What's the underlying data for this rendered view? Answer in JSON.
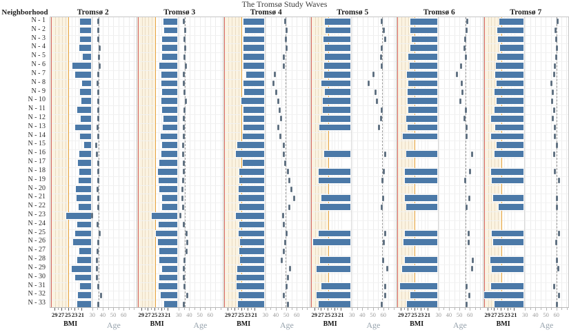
{
  "title": "The Tromsø Study Waves",
  "neighborhood_header": "Neighborhood",
  "axes": {
    "bmi_label": "BMI",
    "age_label": "Age",
    "bmi_domain": [
      30.5,
      18
    ],
    "bmi_ticks": [
      29,
      27,
      25,
      23,
      21
    ],
    "bmi_minor_ticks": [
      29,
      28,
      27,
      26,
      25,
      24,
      23,
      22,
      21
    ],
    "bmi_reference_line": 25,
    "age_domain": [
      29,
      72
    ],
    "age_ticks": [
      30,
      40,
      50,
      60
    ],
    "age_minor_step": 5,
    "bmi_zone_fraction": 0.48
  },
  "colors": {
    "bar": "#4b79a8",
    "bar_border": "#fdfdfd",
    "cream_background": "#fbf3e1",
    "orange_reference": "#e6a23c",
    "red_edge": "#d1605e",
    "age_marker": "#56687a",
    "mean_age_dash": "#979797",
    "grid_cream": "#eadcc4",
    "grid_white": "#efefef",
    "grid_age": "#ececec"
  },
  "chart_data": {
    "type": "bar",
    "title": "The Tromsø Study Waves",
    "xlabel_left": "BMI",
    "xlabel_right": "Age",
    "legend_position": "none",
    "grid": true,
    "categories": [
      "N - 1",
      "N - 2",
      "N - 3",
      "N - 4",
      "N - 5",
      "N - 6",
      "N - 7",
      "N - 8",
      "N - 9",
      "N - 10",
      "N - 11",
      "N - 12",
      "N - 13",
      "N - 14",
      "N - 15",
      "N - 16",
      "N - 17",
      "N - 18",
      "N - 19",
      "N - 20",
      "N - 21",
      "N - 22",
      "N - 23",
      "N - 24",
      "N - 25",
      "N - 26",
      "N - 27",
      "N - 28",
      "N - 29",
      "N - 30",
      "N - 31",
      "N - 32",
      "N - 33"
    ],
    "panels": [
      {
        "title": "Tromsø 2",
        "mean_age_line": 35.5,
        "bmi": [
          21.8,
          21.8,
          21.8,
          22.0,
          20.9,
          24.0,
          23.1,
          21.1,
          21.8,
          21.3,
          22.5,
          21.5,
          23.1,
          21.8,
          20.5,
          22.0,
          22.4,
          22.0,
          22.1,
          23.0,
          22.7,
          22.2,
          25.8,
          22.5,
          23.1,
          23.9,
          22.0,
          22.5,
          24.2,
          23.1,
          21.8,
          22.4,
          22.5
        ],
        "age": [
          35.2,
          35.8,
          35.5,
          36.5,
          36.2,
          36.5,
          35.8,
          34.5,
          35.2,
          35.5,
          35.2,
          35.5,
          34.9,
          35.8,
          33.6,
          34.2,
          35.5,
          35.2,
          35.5,
          34.9,
          35.5,
          35.2,
          29.7,
          34.5,
          36.5,
          35.8,
          34.9,
          34.2,
          33.9,
          34.2,
          35.5,
          37.8,
          35.2
        ]
      },
      {
        "title": "Tromsø 3",
        "mean_age_line": 35.2,
        "bmi": [
          22.7,
          22.4,
          23.0,
          23.1,
          23.1,
          24.0,
          23.2,
          23.2,
          23.1,
          23.2,
          23.0,
          22.7,
          22.9,
          23.5,
          23.1,
          23.3,
          24.0,
          24.4,
          24.2,
          23.9,
          23.1,
          23.1,
          26.3,
          24.2,
          24.9,
          24.4,
          23.9,
          23.9,
          23.1,
          24.0,
          24.2,
          23.5,
          22.5
        ],
        "age": [
          34.7,
          36.0,
          35.3,
          35.5,
          35.3,
          36.4,
          34.2,
          34.7,
          35.3,
          36.4,
          34.9,
          34.2,
          34.7,
          34.2,
          33.8,
          33.8,
          34.7,
          34.2,
          33.8,
          33.1,
          33.1,
          33.8,
          31.0,
          34.7,
          36.8,
          37.5,
          36.8,
          35.3,
          34.7,
          34.7,
          35.3,
          38.1,
          34.2
        ]
      },
      {
        "title": "Tromsø 4",
        "mean_age_line": 49.0,
        "bmi": [
          24.7,
          24.2,
          24.7,
          24.7,
          24.7,
          24.7,
          23.9,
          24.7,
          24.4,
          25.2,
          24.7,
          24.7,
          24.7,
          24.9,
          26.5,
          27.0,
          24.9,
          25.8,
          25.9,
          26.1,
          26.1,
          25.9,
          27.0,
          25.8,
          26.1,
          25.6,
          25.8,
          25.6,
          26.6,
          26.7,
          26.7,
          26.1,
          26.3
        ],
        "age": [
          49.0,
          50.0,
          49.4,
          49.8,
          47.2,
          47.7,
          39.0,
          37.5,
          40.3,
          41.8,
          43.3,
          45.1,
          41.8,
          44.0,
          47.7,
          47.2,
          49.0,
          51.6,
          52.6,
          54.9,
          57.7,
          52.6,
          46.8,
          47.2,
          49.8,
          49.0,
          47.7,
          45.5,
          53.3,
          51.6,
          49.8,
          47.7,
          51.6
        ]
      },
      {
        "title": "Tromsø 5",
        "mean_age_line": 58.5,
        "bmi": [
          26.3,
          26.1,
          26.6,
          26.3,
          26.3,
          26.5,
          26.5,
          27.2,
          26.3,
          26.8,
          26.8,
          27.4,
          27.8,
          null,
          null,
          26.5,
          null,
          28.0,
          28.0,
          null,
          27.2,
          27.6,
          null,
          null,
          28.1,
          29.7,
          null,
          27.6,
          28.7,
          null,
          27.3,
          28.8,
          28.1
        ],
        "age": [
          58.5,
          60.3,
          61.4,
          58.5,
          57.7,
          58.1,
          50.5,
          45.5,
          52.7,
          53.8,
          58.5,
          57.7,
          55.5,
          null,
          null,
          61.4,
          null,
          60.3,
          59.2,
          null,
          59.8,
          58.5,
          null,
          null,
          62.0,
          60.7,
          null,
          59.8,
          63.5,
          null,
          62.0,
          61.4,
          58.5
        ]
      },
      {
        "title": "Tromsø 6",
        "mean_age_line": 56.0,
        "bmi": [
          26.6,
          26.6,
          26.1,
          26.6,
          27.2,
          26.8,
          27.6,
          27.2,
          27.3,
          27.4,
          27.2,
          27.8,
          27.4,
          28.8,
          null,
          27.8,
          null,
          28.1,
          28.3,
          null,
          28.1,
          27.8,
          null,
          null,
          28.3,
          28.7,
          null,
          28.3,
          29.0,
          null,
          29.7,
          26.6,
          27.6
        ],
        "age": [
          57.7,
          57.0,
          55.5,
          54.9,
          56.0,
          51.2,
          47.2,
          52.0,
          52.7,
          50.5,
          56.0,
          54.9,
          56.4,
          57.0,
          null,
          62.0,
          null,
          60.3,
          55.5,
          null,
          59.2,
          56.4,
          null,
          null,
          58.5,
          58.5,
          null,
          62.4,
          62.0,
          null,
          57.0,
          59.2,
          57.0
        ]
      },
      {
        "title": "Tromsø 7",
        "mean_age_line": 60.9,
        "bmi": [
          25.8,
          26.3,
          26.1,
          25.6,
          26.3,
          26.8,
          27.0,
          26.5,
          27.2,
          26.7,
          27.2,
          28.2,
          27.0,
          28.3,
          26.7,
          27.2,
          null,
          28.2,
          28.0,
          null,
          27.6,
          26.0,
          null,
          null,
          28.0,
          27.6,
          null,
          28.5,
          28.0,
          null,
          28.2,
          30.3,
          27.2
        ],
        "age": [
          61.4,
          59.8,
          60.5,
          60.9,
          60.5,
          59.2,
          58.3,
          55.5,
          57.0,
          56.2,
          58.3,
          57.0,
          59.2,
          59.2,
          60.9,
          58.3,
          null,
          58.8,
          63.1,
          null,
          60.9,
          60.9,
          null,
          null,
          63.1,
          60.5,
          null,
          60.9,
          62.0,
          null,
          58.3,
          63.1,
          60.9
        ]
      }
    ]
  }
}
